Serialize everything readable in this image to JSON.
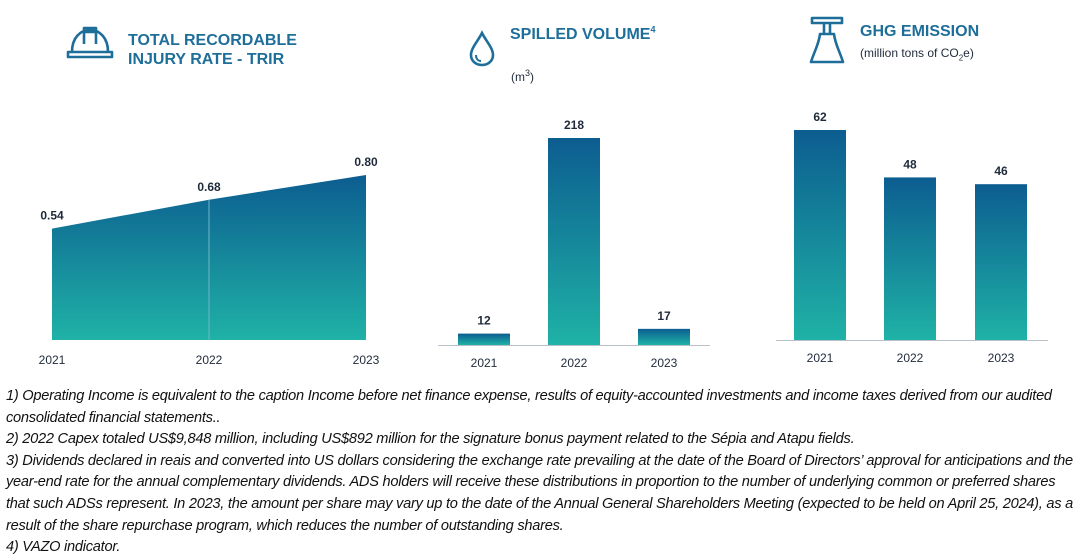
{
  "colors": {
    "bar_top": "#0c5d90",
    "bar_bottom": "#1fb2a6",
    "title": "#1e6e9a",
    "axis": "#b9c0c8"
  },
  "panels": {
    "trir": {
      "title_line1": "TOTAL RECORDABLE",
      "title_line2": "INJURY RATE - TRIR",
      "icon": "hard-hat-icon"
    },
    "spill": {
      "title": "SPILLED VOLUME",
      "title_sup": "4",
      "unit_base": "(m",
      "unit_sup": "3",
      "unit_close": ")",
      "icon": "water-drop-icon"
    },
    "ghg": {
      "title": "GHG EMISSION",
      "subtitle_pre": "(million tons of CO",
      "subtitle_sub": "2",
      "subtitle_post": "e)",
      "icon": "refinery-chimney-icon"
    }
  },
  "chart_data": [
    {
      "type": "area",
      "title": "TOTAL RECORDABLE INJURY RATE - TRIR",
      "categories": [
        "2021",
        "2022",
        "2023"
      ],
      "values": [
        0.54,
        0.68,
        0.8
      ],
      "data_labels": [
        "0.54",
        "0.68",
        "0.80"
      ],
      "ylim": [
        0,
        0.8
      ],
      "grid": false
    },
    {
      "type": "bar",
      "title": "SPILLED VOLUME",
      "ylabel": "m3",
      "categories": [
        "2021",
        "2022",
        "2023"
      ],
      "values": [
        12,
        218,
        17
      ],
      "data_labels": [
        "12",
        "218",
        "17"
      ],
      "ylim": [
        0,
        218
      ],
      "grid": false
    },
    {
      "type": "bar",
      "title": "GHG EMISSION",
      "ylabel": "million tons of CO2e",
      "categories": [
        "2021",
        "2022",
        "2023"
      ],
      "values": [
        62,
        48,
        46
      ],
      "data_labels": [
        "62",
        "48",
        "46"
      ],
      "ylim": [
        0,
        62
      ],
      "grid": false
    }
  ],
  "notes": [
    "1) Operating Income is equivalent to the caption Income before net finance expense, results of equity-accounted investments and income taxes derived from our audited consolidated financial statements..",
    "2) 2022 Capex totaled US$9,848 million, including US$892 million for the signature bonus payment related to the Sépia and Atapu fields.",
    "3) Dividends declared in reais and converted into US dollars considering the exchange rate prevailing at the date of the Board of Directors’ approval for anticipations and the year-end rate for the annual complementary dividends. ADS holders will receive these distributions in proportion to the number of underlying common or preferred shares that such ADSs represent. In 2023, the amount per share may vary up to the date of the Annual General Shareholders Meeting (expected to be held on April 25, 2024), as a result of the share repurchase program, which reduces the number of outstanding shares.",
    "4) VAZO indicator."
  ]
}
